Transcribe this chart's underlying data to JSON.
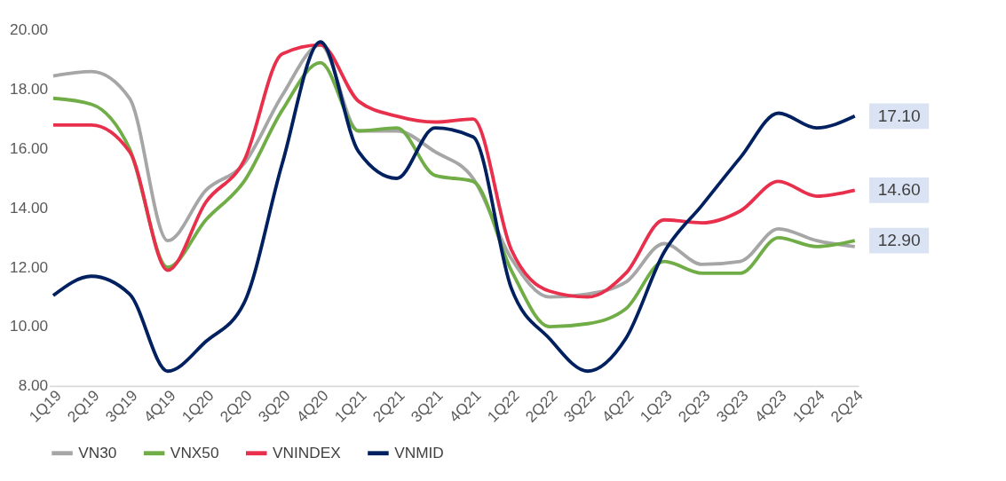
{
  "chart_data": {
    "type": "line",
    "categories": [
      "1Q19",
      "2Q19",
      "3Q19",
      "4Q19",
      "1Q20",
      "2Q20",
      "3Q20",
      "4Q20",
      "1Q21",
      "2Q21",
      "3Q21",
      "4Q21",
      "1Q22",
      "2Q22",
      "3Q22",
      "4Q22",
      "1Q23",
      "2Q23",
      "3Q23",
      "4Q23",
      "1Q24",
      "2Q24"
    ],
    "series": [
      {
        "name": "VN30",
        "color": "#a6a6a6",
        "values": [
          18.45,
          18.6,
          17.7,
          12.9,
          14.6,
          15.5,
          17.8,
          19.5,
          16.6,
          16.6,
          15.9,
          15.0,
          12.3,
          11.0,
          11.1,
          11.5,
          12.8,
          12.1,
          12.2,
          13.3,
          12.9,
          12.7
        ]
      },
      {
        "name": "VNX50",
        "color": "#70ad47",
        "values": [
          17.7,
          17.5,
          16.0,
          12.0,
          13.6,
          14.9,
          17.3,
          18.9,
          16.6,
          16.7,
          15.1,
          14.9,
          11.9,
          10.0,
          10.1,
          10.6,
          12.2,
          11.8,
          11.8,
          13.0,
          12.7,
          12.9
        ],
        "value_labels": [
          null,
          null,
          null,
          null,
          null,
          null,
          null,
          null,
          null,
          null,
          null,
          null,
          null,
          null,
          null,
          null,
          null,
          null,
          null,
          null,
          null,
          "12.90"
        ]
      },
      {
        "name": "VNINDEX",
        "color": "#e8304d",
        "values": [
          16.8,
          16.8,
          15.9,
          11.9,
          14.2,
          15.6,
          19.2,
          19.5,
          17.6,
          17.1,
          16.9,
          17.0,
          12.6,
          11.2,
          11.0,
          11.8,
          13.6,
          13.5,
          13.9,
          14.9,
          14.4,
          14.6
        ],
        "value_labels": [
          null,
          null,
          null,
          null,
          null,
          null,
          null,
          null,
          null,
          null,
          null,
          null,
          null,
          null,
          null,
          null,
          null,
          null,
          null,
          null,
          null,
          "14.60"
        ]
      },
      {
        "name": "VNMID",
        "color": "#002060",
        "values": [
          11.05,
          11.7,
          11.1,
          8.5,
          9.5,
          10.8,
          15.5,
          19.6,
          15.9,
          15.0,
          16.7,
          16.4,
          11.3,
          9.6,
          8.5,
          9.6,
          12.5,
          14.1,
          15.7,
          17.2,
          16.7,
          17.1
        ],
        "value_labels": [
          null,
          null,
          null,
          null,
          null,
          null,
          null,
          null,
          null,
          null,
          null,
          null,
          null,
          null,
          null,
          null,
          null,
          null,
          null,
          null,
          null,
          "17.10"
        ]
      }
    ],
    "ylim": [
      8,
      20
    ],
    "yticks": [
      {
        "value": 8,
        "label": "8.00"
      },
      {
        "value": 10,
        "label": "10.00"
      },
      {
        "value": 12,
        "label": "12.00"
      },
      {
        "value": 14,
        "label": "14.00"
      },
      {
        "value": 16,
        "label": "16.00"
      },
      {
        "value": 18,
        "label": "18.00"
      },
      {
        "value": 20,
        "label": "20.00"
      }
    ],
    "grid": false,
    "legend": "bottom",
    "marker": "none",
    "line_style": "solid"
  }
}
